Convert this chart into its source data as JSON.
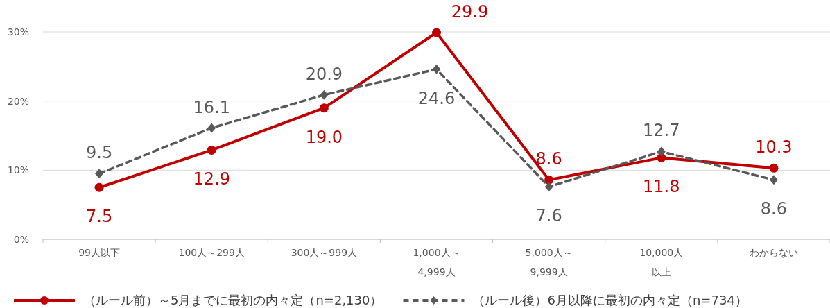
{
  "chart_data": {
    "type": "line",
    "categories": [
      "99人以下",
      "100人～299人",
      "300人～999人",
      "1,000人～4,999人",
      "5,000人～9,999人",
      "10,000人以上",
      "わからない"
    ],
    "series": [
      {
        "name": "（ルール前）～5月までに最初の内々定（n=2,130）",
        "color": "#c00000",
        "marker": "circle",
        "line_style": "solid",
        "values": [
          7.5,
          12.9,
          19.0,
          29.9,
          8.6,
          11.8,
          10.3
        ],
        "value_labels": [
          "7.5",
          "12.9",
          "19.0",
          "29.9",
          "8.6",
          "11.8",
          "10.3"
        ]
      },
      {
        "name": "（ルール後）6月以降に最初の内々定（n=734）",
        "color": "#595959",
        "marker": "diamond",
        "line_style": "dashed",
        "values": [
          9.5,
          16.1,
          20.9,
          24.6,
          7.6,
          12.7,
          8.6
        ],
        "value_labels": [
          "9.5",
          "16.1",
          "20.9",
          "24.6",
          "7.6",
          "12.7",
          "8.6"
        ]
      }
    ],
    "ylim": [
      0,
      30
    ],
    "yticks": [
      {
        "value": 0,
        "label": "0%"
      },
      {
        "value": 10,
        "label": "10%"
      },
      {
        "value": 20,
        "label": "20%"
      },
      {
        "value": 30,
        "label": "30%"
      }
    ],
    "grid": "y",
    "legend": "bottom"
  }
}
